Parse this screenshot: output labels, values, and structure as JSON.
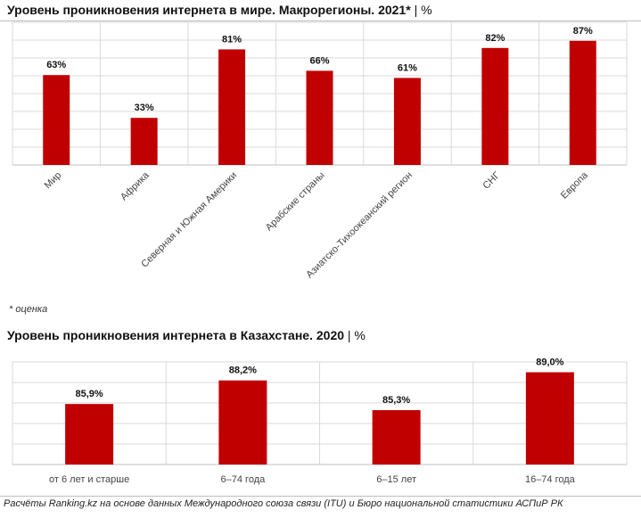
{
  "title1": "Уровень проникновения интернета в мире. Макрорегионы. 2021*",
  "unit1": "| %",
  "title2": "Уровень проникновения интернета в Казахстане. 2020",
  "unit2": "| %",
  "note": "* оценка",
  "source": "Расчёты Ranking.kz на основе данных Международного союза связи (ITU) и Бюро национальной статистики АСПиР РК",
  "colors": {
    "bar": "#c00000"
  },
  "chart_data": [
    {
      "type": "bar",
      "title": "Уровень проникновения интернета в мире. Макрорегионы. 2021*",
      "categories": [
        "Мир",
        "Африка",
        "Северная и Южная Америки",
        "Арабские страны",
        "Азиатско-Тихоокеанский регион",
        "СНГ",
        "Европа"
      ],
      "values": [
        63,
        33,
        81,
        66,
        61,
        82,
        87
      ],
      "labels": [
        "63%",
        "33%",
        "81%",
        "66%",
        "61%",
        "82%",
        "87%"
      ],
      "ylim": [
        0,
        100
      ],
      "grid": true
    },
    {
      "type": "bar",
      "title": "Уровень проникновения интернета в Казахстане. 2020",
      "categories": [
        "от 6 лет и старше",
        "6–74 года",
        "6–15 лет",
        "16–74 года"
      ],
      "values": [
        85.9,
        88.2,
        85.3,
        89.0
      ],
      "labels": [
        "85,9%",
        "88,2%",
        "85,3%",
        "89,0%"
      ],
      "ylim": [
        80,
        90
      ],
      "grid": true
    }
  ]
}
